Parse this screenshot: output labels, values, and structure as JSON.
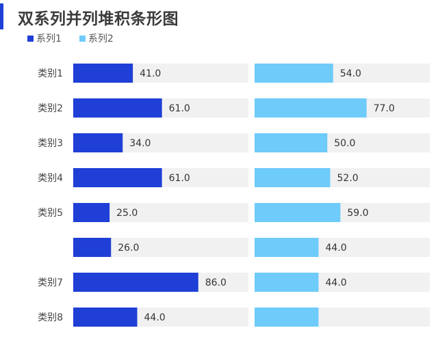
{
  "title": "双系列并列堆积条形图",
  "colors": {
    "accent": "#1f3fd6",
    "series1": "#1f3fd6",
    "series2": "#6ecbfa",
    "track": "#f1f1f1"
  },
  "chart_data": {
    "type": "bar",
    "orientation": "horizontal",
    "layout": "two panels side by side, one per series",
    "title": "双系列并列堆积条形图",
    "legend_position": "top-left",
    "categories": [
      "类别1",
      "类别2",
      "类别3",
      "类别4",
      "类别5",
      "",
      "类别7",
      "类别8"
    ],
    "xlim": [
      0,
      100
    ],
    "grid": false,
    "series": [
      {
        "name": "系列1",
        "color": "#1f3fd6",
        "values": [
          41.0,
          61.0,
          34.0,
          61.0,
          25.0,
          26.0,
          86.0,
          44.0
        ],
        "labels": [
          "41.0",
          "61.0",
          "34.0",
          "61.0",
          "25.0",
          "26.0",
          "86.0",
          "44.0"
        ]
      },
      {
        "name": "系列2",
        "color": "#6ecbfa",
        "values": [
          54.0,
          77.0,
          50.0,
          52.0,
          59.0,
          44.0,
          44.0,
          44.0
        ],
        "labels": [
          "54.0",
          "77.0",
          "50.0",
          "52.0",
          "59.0",
          "44.0",
          "44.0",
          ""
        ]
      }
    ]
  }
}
